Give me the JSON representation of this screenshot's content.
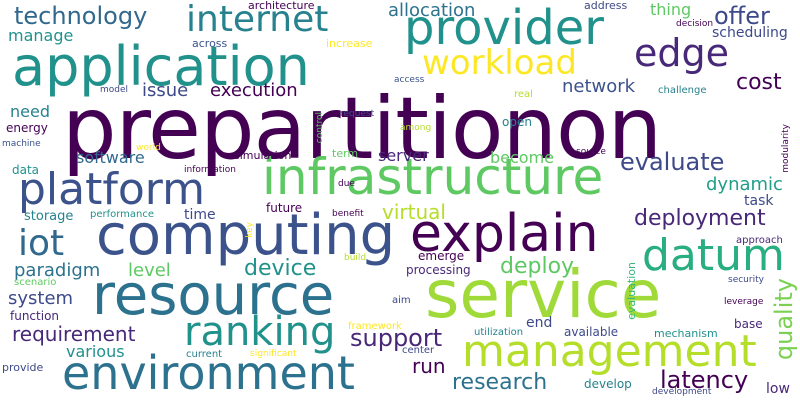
{
  "words": [
    {
      "id": "prepartitionon",
      "text": "prepartitionon",
      "color": "#440154"
    },
    {
      "id": "service",
      "text": "service",
      "color": "#a0da39"
    },
    {
      "id": "resource",
      "text": "resource",
      "color": "#2c728e"
    },
    {
      "id": "infrastructure",
      "text": "infrastructure",
      "color": "#5ec962"
    },
    {
      "id": "computing",
      "text": "computing",
      "color": "#3b528b"
    },
    {
      "id": "explain",
      "text": "explain",
      "color": "#440154"
    },
    {
      "id": "application",
      "text": "application",
      "color": "#21918c"
    },
    {
      "id": "environment",
      "text": "environment",
      "color": "#2c728e"
    },
    {
      "id": "management",
      "text": "management",
      "color": "#b5de2b"
    },
    {
      "id": "provider",
      "text": "provider",
      "color": "#21918c"
    },
    {
      "id": "platform",
      "text": "platform",
      "color": "#3b528b"
    },
    {
      "id": "datum",
      "text": "datum",
      "color": "#28ae80"
    },
    {
      "id": "ranking",
      "text": "ranking",
      "color": "#21918c"
    },
    {
      "id": "internet",
      "text": "internet",
      "color": "#26828e"
    },
    {
      "id": "edge",
      "text": "edge",
      "color": "#482878"
    },
    {
      "id": "workload",
      "text": "workload",
      "color": "#fde725"
    },
    {
      "id": "iot",
      "text": "iot",
      "color": "#31688e"
    },
    {
      "id": "technology",
      "text": "technology",
      "color": "#31688e"
    },
    {
      "id": "support",
      "text": "support",
      "color": "#482878"
    },
    {
      "id": "evaluate",
      "text": "evaluate",
      "color": "#3e4989"
    },
    {
      "id": "deployment",
      "text": "deployment",
      "color": "#482878"
    },
    {
      "id": "latency",
      "text": "latency",
      "color": "#440154"
    },
    {
      "id": "research",
      "text": "research",
      "color": "#2c728e"
    },
    {
      "id": "deploy",
      "text": "deploy",
      "color": "#5ec962"
    },
    {
      "id": "device",
      "text": "device",
      "color": "#21918c"
    },
    {
      "id": "virtual",
      "text": "virtual",
      "color": "#b5de2b"
    },
    {
      "id": "offer",
      "text": "offer",
      "color": "#3e4989"
    },
    {
      "id": "cost",
      "text": "cost",
      "color": "#440154"
    },
    {
      "id": "network",
      "text": "network",
      "color": "#3b528b"
    },
    {
      "id": "dynamic",
      "text": "dynamic",
      "color": "#1f9e89"
    },
    {
      "id": "paradigm",
      "text": "paradigm",
      "color": "#2c728e"
    },
    {
      "id": "requirement",
      "text": "requirement",
      "color": "#482878"
    },
    {
      "id": "quality",
      "text": "quality",
      "color": "#7ad151"
    },
    {
      "id": "execution",
      "text": "execution",
      "color": "#440154"
    },
    {
      "id": "issue",
      "text": "issue",
      "color": "#3e4989"
    },
    {
      "id": "allocation",
      "text": "allocation",
      "color": "#2c728e"
    },
    {
      "id": "manage",
      "text": "manage",
      "color": "#21918c"
    },
    {
      "id": "system",
      "text": "system",
      "color": "#3e4989"
    },
    {
      "id": "level",
      "text": "level",
      "color": "#5ec962"
    },
    {
      "id": "software",
      "text": "software",
      "color": "#31688e"
    },
    {
      "id": "server",
      "text": "server",
      "color": "#482878"
    },
    {
      "id": "become",
      "text": "become",
      "color": "#5ec962"
    },
    {
      "id": "run",
      "text": "run",
      "color": "#440154"
    },
    {
      "id": "various",
      "text": "various",
      "color": "#21918c"
    },
    {
      "id": "need",
      "text": "need",
      "color": "#26828e"
    },
    {
      "id": "thing",
      "text": "thing",
      "color": "#5ec962"
    },
    {
      "id": "time",
      "text": "time",
      "color": "#3e4989"
    },
    {
      "id": "scheduling",
      "text": "scheduling",
      "color": "#3e4989"
    },
    {
      "id": "processing",
      "text": "processing",
      "color": "#482878"
    },
    {
      "id": "end",
      "text": "end",
      "color": "#3e4989"
    },
    {
      "id": "open",
      "text": "open",
      "color": "#26828e"
    },
    {
      "id": "task",
      "text": "task",
      "color": "#3e4989"
    },
    {
      "id": "available",
      "text": "available",
      "color": "#3e4989"
    },
    {
      "id": "develop",
      "text": "develop",
      "color": "#26828e"
    },
    {
      "id": "emerge",
      "text": "emerge",
      "color": "#440154"
    },
    {
      "id": "base",
      "text": "base",
      "color": "#482878"
    },
    {
      "id": "low",
      "text": "low",
      "color": "#482878"
    },
    {
      "id": "storage",
      "text": "storage",
      "color": "#26828e"
    },
    {
      "id": "data",
      "text": "data",
      "color": "#21918c"
    },
    {
      "id": "energy",
      "text": "energy",
      "color": "#440154"
    },
    {
      "id": "function",
      "text": "function",
      "color": "#482878"
    },
    {
      "id": "future",
      "text": "future",
      "color": "#440154"
    },
    {
      "id": "provide",
      "text": "provide",
      "color": "#3e4989"
    },
    {
      "id": "architecture",
      "text": "architecture",
      "color": "#440154"
    },
    {
      "id": "address",
      "text": "address",
      "color": "#3e4989"
    },
    {
      "id": "increase",
      "text": "increase",
      "color": "#fde725"
    },
    {
      "id": "across",
      "text": "across",
      "color": "#3b528b"
    },
    {
      "id": "simulation",
      "text": "simulation",
      "color": "#440154"
    },
    {
      "id": "term",
      "text": "term",
      "color": "#5ec962"
    },
    {
      "id": "approach",
      "text": "approach",
      "color": "#482878"
    },
    {
      "id": "mechanism",
      "text": "mechanism",
      "color": "#21918c"
    },
    {
      "id": "center",
      "text": "center",
      "color": "#3e4989"
    },
    {
      "id": "performance",
      "text": "performance",
      "color": "#21918c"
    },
    {
      "id": "evaluation",
      "text": "evaluation",
      "color": "#35b779"
    },
    {
      "id": "framework",
      "text": "framework",
      "color": "#fde725"
    },
    {
      "id": "scenario",
      "text": "scenario",
      "color": "#5ec962"
    },
    {
      "id": "challenge",
      "text": "challenge",
      "color": "#26828e"
    },
    {
      "id": "decision",
      "text": "decision",
      "color": "#440154"
    },
    {
      "id": "access",
      "text": "access",
      "color": "#3b528b"
    },
    {
      "id": "model",
      "text": "model",
      "color": "#3e4989"
    },
    {
      "id": "information",
      "text": "information",
      "color": "#440154"
    },
    {
      "id": "request",
      "text": "request",
      "color": "#3e4989"
    },
    {
      "id": "among",
      "text": "among",
      "color": "#b5de2b"
    },
    {
      "id": "source",
      "text": "source",
      "color": "#440154"
    },
    {
      "id": "real",
      "text": "real",
      "color": "#b5de2b"
    },
    {
      "id": "modularity",
      "text": "modularity",
      "color": "#440154"
    },
    {
      "id": "machine",
      "text": "machine",
      "color": "#3b528b"
    },
    {
      "id": "world",
      "text": "world",
      "color": "#fde725"
    },
    {
      "id": "control",
      "text": "control",
      "color": "#5ec962"
    },
    {
      "id": "due",
      "text": "due",
      "color": "#440154"
    },
    {
      "id": "benefit",
      "text": "benefit",
      "color": "#440154"
    },
    {
      "id": "key",
      "text": "key",
      "color": "#fde725"
    },
    {
      "id": "build",
      "text": "build",
      "color": "#b5de2b"
    },
    {
      "id": "aim",
      "text": "aim",
      "color": "#3e4989"
    },
    {
      "id": "security",
      "text": "security",
      "color": "#3e4989"
    },
    {
      "id": "leverage",
      "text": "leverage",
      "color": "#440154"
    },
    {
      "id": "utilization",
      "text": "utilization",
      "color": "#26828e"
    },
    {
      "id": "current",
      "text": "current",
      "color": "#26828e"
    },
    {
      "id": "significant",
      "text": "significant",
      "color": "#fde725"
    },
    {
      "id": "development",
      "text": "development",
      "color": "#3e4989"
    }
  ]
}
